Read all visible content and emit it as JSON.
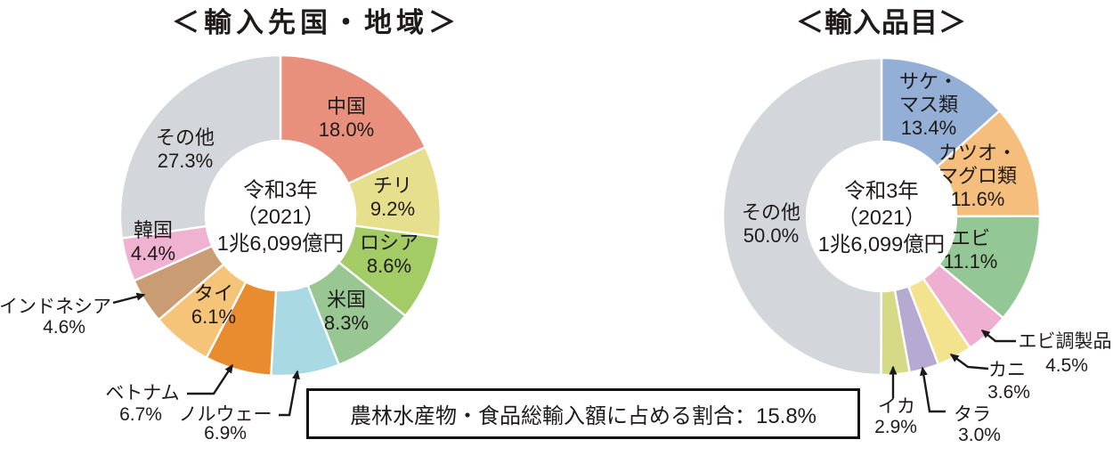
{
  "chart_data": [
    {
      "type": "pie",
      "variant": "donut",
      "title": "＜輸入先国・地域＞",
      "center_label": [
        "令和3年",
        "（2021）",
        "1兆6,099億円"
      ],
      "unit": "%",
      "legend_position": "on-slice",
      "segments": [
        {
          "label": "中国",
          "value": 18.0,
          "color": "#E8907C"
        },
        {
          "label": "チリ",
          "value": 9.2,
          "color": "#E6DF8D"
        },
        {
          "label": "ロシア",
          "value": 8.6,
          "color": "#A3CB66"
        },
        {
          "label": "米国",
          "value": 8.3,
          "color": "#98C794"
        },
        {
          "label": "ノルウェー",
          "value": 6.9,
          "color": "#A9DAE4"
        },
        {
          "label": "ベトナム",
          "value": 6.7,
          "color": "#E88C2F"
        },
        {
          "label": "タイ",
          "value": 6.1,
          "color": "#F6C479"
        },
        {
          "label": "インドネシア",
          "value": 4.6,
          "color": "#C99C73"
        },
        {
          "label": "韓国",
          "value": 4.4,
          "color": "#EFB3D1"
        },
        {
          "label": "その他",
          "value": 27.3,
          "color": "#D3D6DB"
        }
      ]
    },
    {
      "type": "pie",
      "variant": "donut",
      "title": "＜輸入品目＞",
      "center_label": [
        "令和3年",
        "（2021）",
        "1兆6,099億円"
      ],
      "unit": "%",
      "legend_position": "on-slice",
      "segments": [
        {
          "label": "サケ・マス類",
          "value": 13.4,
          "color": "#94AFD6",
          "label_lines": [
            "サケ・",
            "マス類"
          ]
        },
        {
          "label": "カツオ・マグロ類",
          "value": 11.6,
          "color": "#F5BE7C",
          "label_lines": [
            "カツオ・",
            "マグロ類"
          ]
        },
        {
          "label": "エビ",
          "value": 11.1,
          "color": "#93C795"
        },
        {
          "label": "エビ調製品",
          "value": 4.5,
          "color": "#EFAFD1"
        },
        {
          "label": "カニ",
          "value": 3.6,
          "color": "#F3E28E"
        },
        {
          "label": "タラ",
          "value": 3.0,
          "color": "#B6A9D2"
        },
        {
          "label": "イカ",
          "value": 2.9,
          "color": "#D6DA87"
        },
        {
          "label": "その他",
          "value": 50.0,
          "color": "#D3D6DB"
        }
      ]
    }
  ],
  "note": {
    "text": "農林水産物・食品総輸入額に占める割合：15.8%"
  },
  "style": {
    "arrow_color": "#1a1a1a",
    "slice_gap_color": "#ffffff",
    "text_color": "#1f1b1a"
  }
}
